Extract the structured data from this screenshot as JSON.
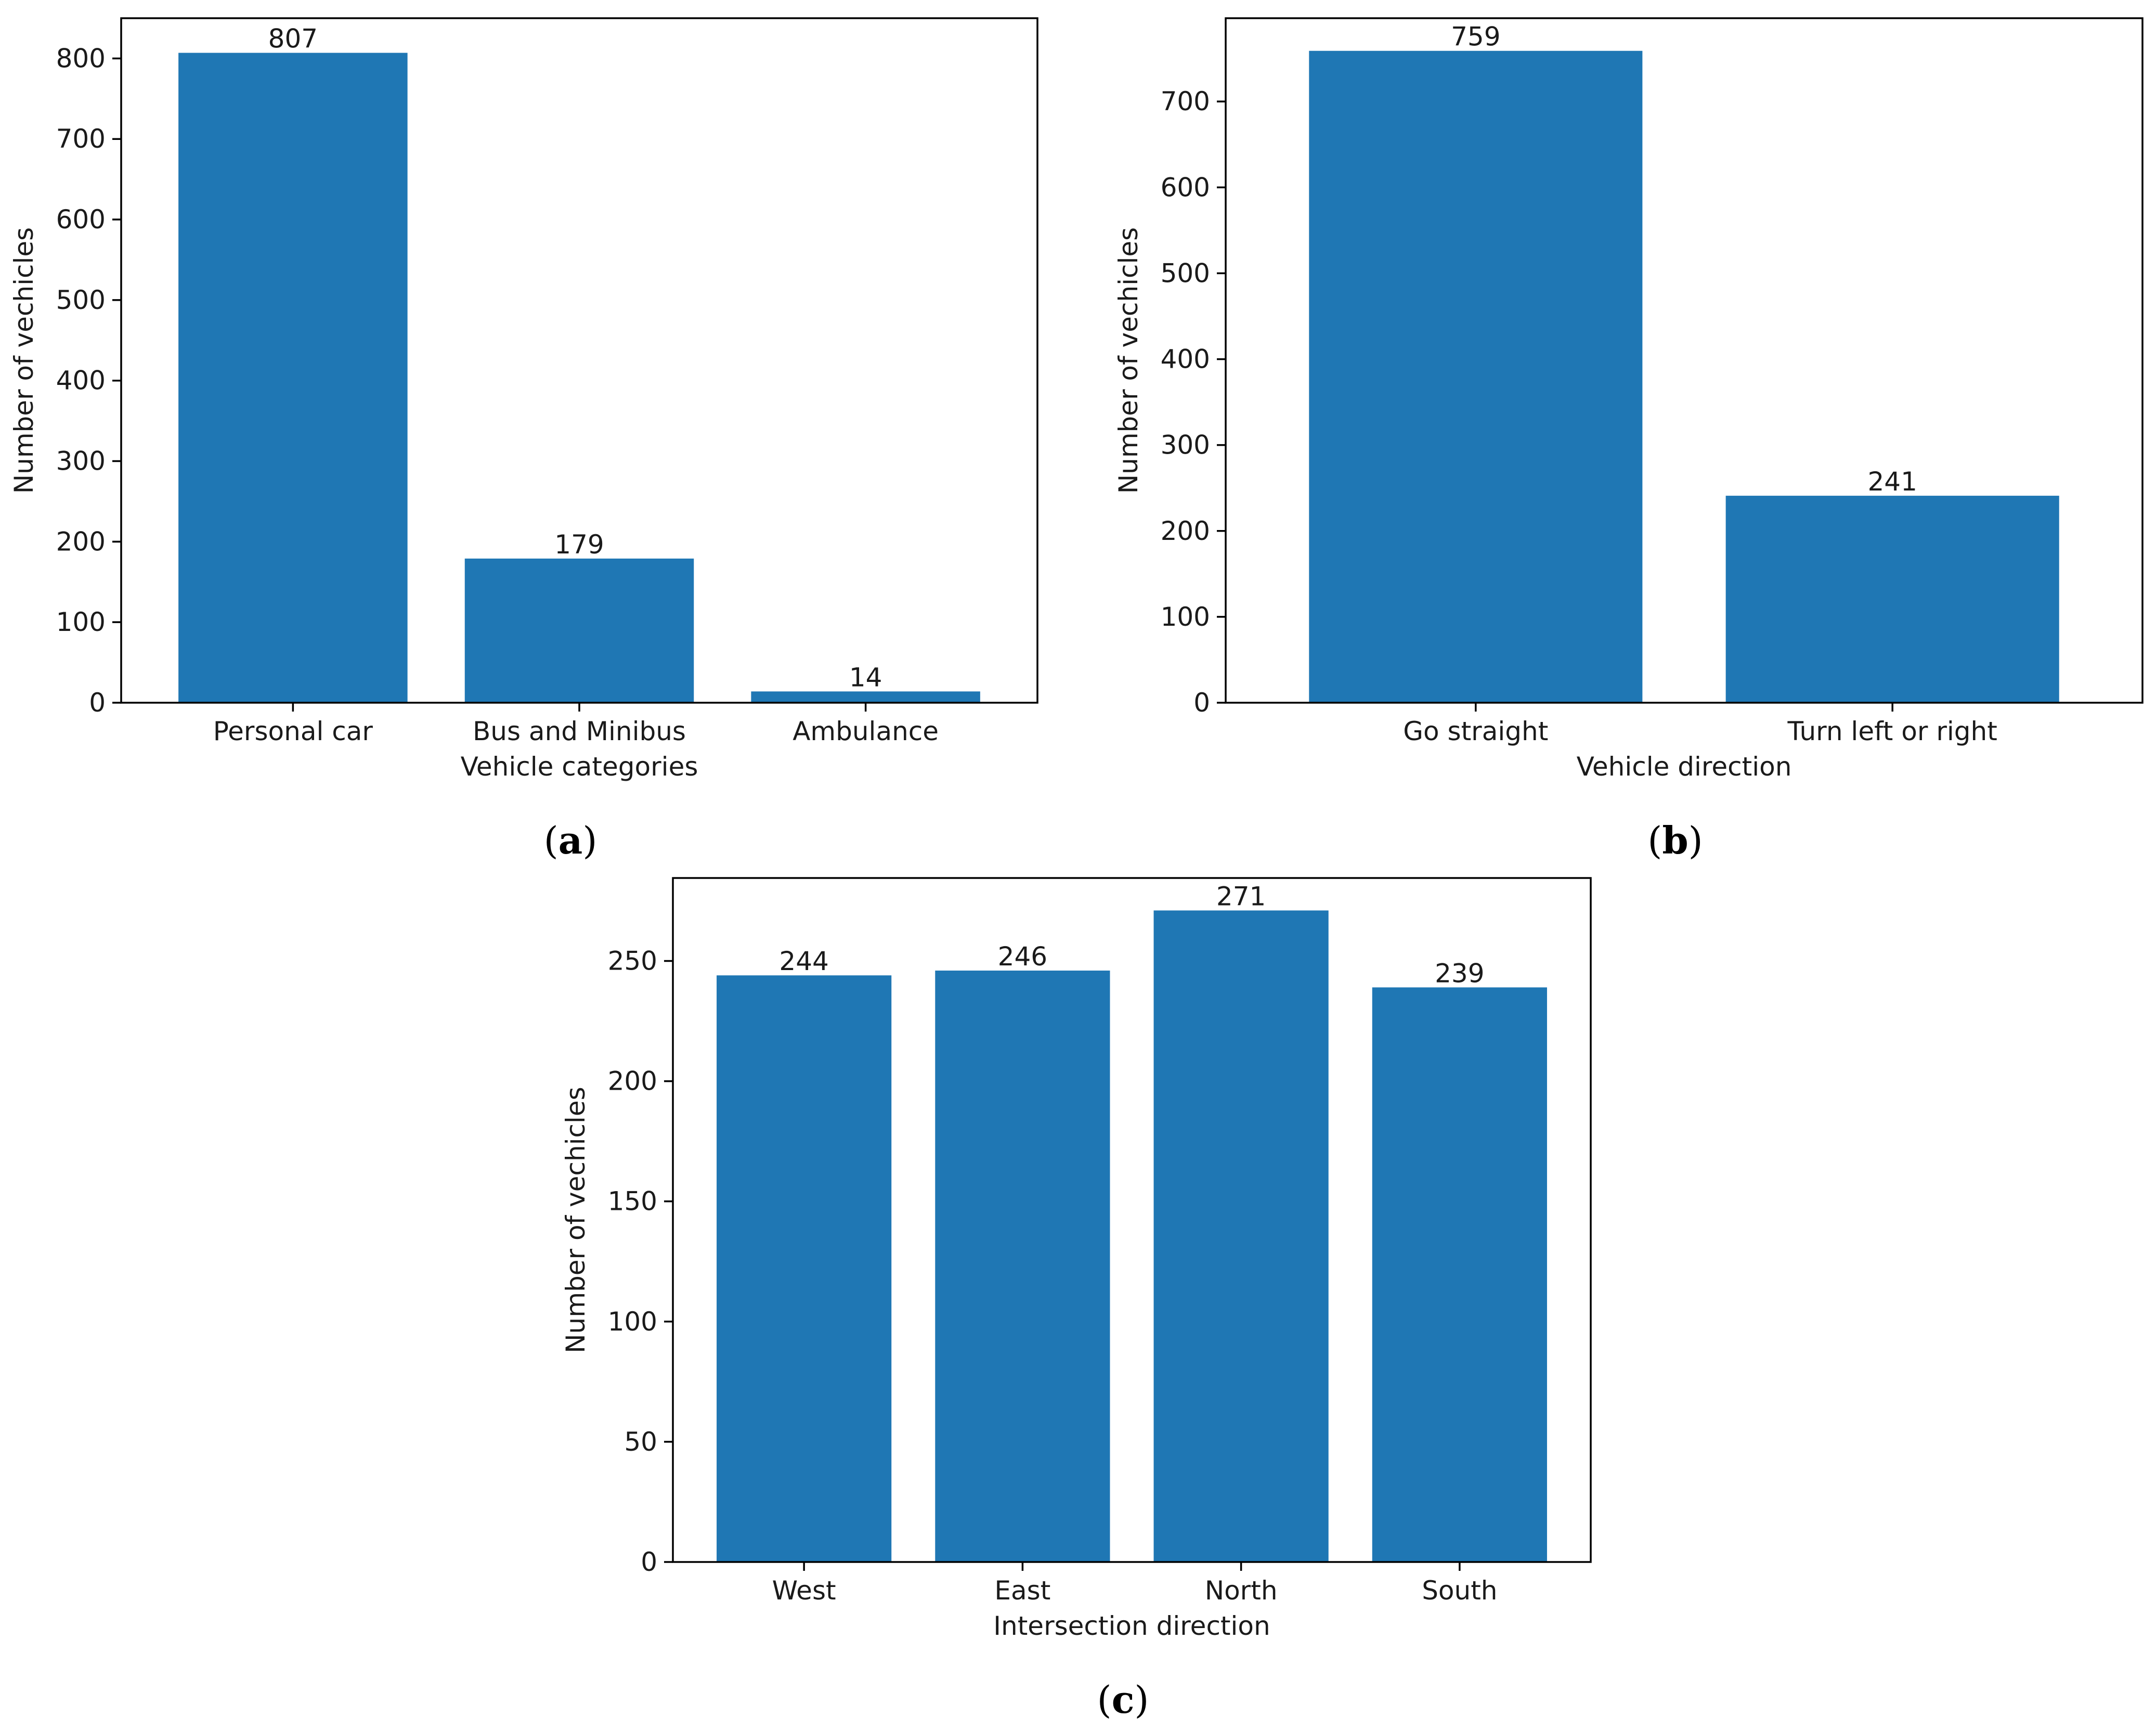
{
  "colors": {
    "bar": "#1f77b4",
    "axis": "#000000",
    "text": "#1a1a1a"
  },
  "chart_data": [
    {
      "panel": "a",
      "type": "bar",
      "title": "",
      "caption": {
        "open": "(",
        "letter": "a",
        "close": ")"
      },
      "categories": [
        "Personal car",
        "Bus and Minibus",
        "Ambulance"
      ],
      "values": [
        807,
        179,
        14
      ],
      "data_labels": [
        "807",
        "179",
        "14"
      ],
      "xlabel": "Vehicle categories",
      "ylabel": "Number of vechicles",
      "ylim": [
        0,
        850
      ],
      "yticks": [
        0,
        100,
        200,
        300,
        400,
        500,
        600,
        700,
        800
      ],
      "ytick_labels": [
        "0",
        "100",
        "200",
        "300",
        "400",
        "500",
        "600",
        "700",
        "800"
      ],
      "grid": false
    },
    {
      "panel": "b",
      "type": "bar",
      "title": "",
      "caption": {
        "open": "(",
        "letter": "b",
        "close": ")"
      },
      "categories": [
        "Go straight",
        "Turn left or right"
      ],
      "values": [
        759,
        241
      ],
      "data_labels": [
        "759",
        "241"
      ],
      "xlabel": "Vehicle direction",
      "ylabel": "Number of vechicles",
      "ylim": [
        0,
        797
      ],
      "yticks": [
        0,
        100,
        200,
        300,
        400,
        500,
        600,
        700
      ],
      "ytick_labels": [
        "0",
        "100",
        "200",
        "300",
        "400",
        "500",
        "600",
        "700"
      ],
      "grid": false
    },
    {
      "panel": "c",
      "type": "bar",
      "title": "",
      "caption": {
        "open": "(",
        "letter": "c",
        "close": ")"
      },
      "categories": [
        "West",
        "East",
        "North",
        "South"
      ],
      "values": [
        244,
        246,
        271,
        239
      ],
      "data_labels": [
        "244",
        "246",
        "271",
        "239"
      ],
      "xlabel": "Intersection direction",
      "ylabel": "Number of vechicles",
      "ylim": [
        0,
        284.5
      ],
      "yticks": [
        0,
        50,
        100,
        150,
        200,
        250
      ],
      "ytick_labels": [
        "0",
        "50",
        "100",
        "150",
        "200",
        "250"
      ],
      "grid": false
    }
  ]
}
